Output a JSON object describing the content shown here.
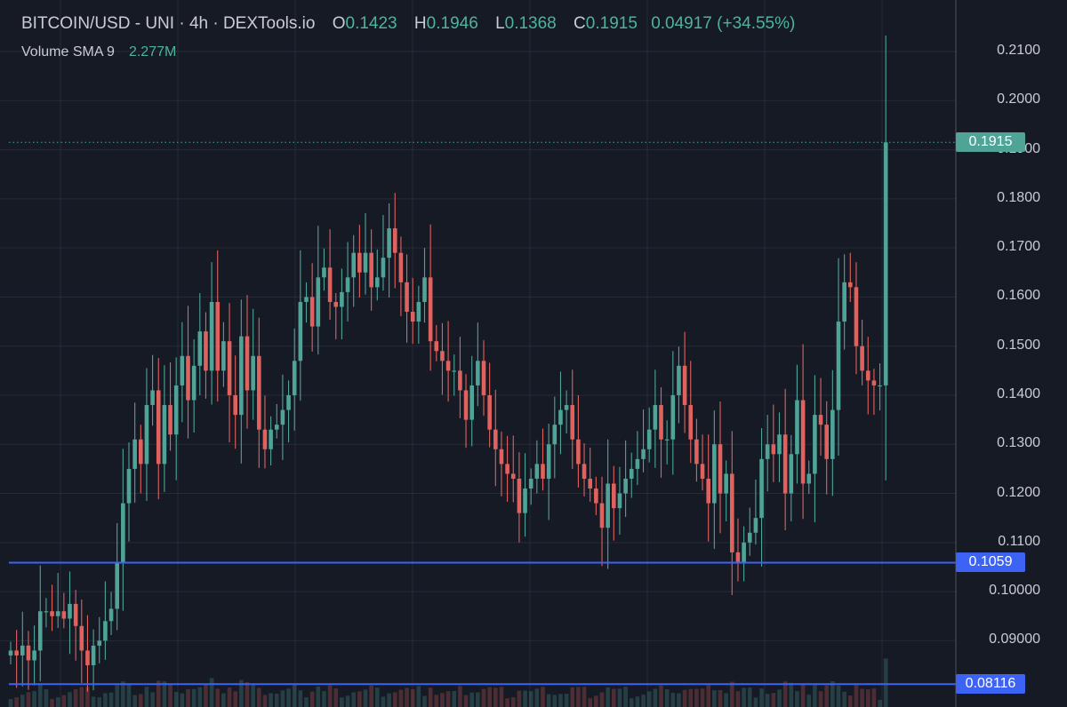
{
  "legend": {
    "title": "BITCOIN/USD - UNI · 4h · DEXTools.io",
    "o_label": "O",
    "o_value": "0.1423",
    "h_label": "H",
    "h_value": "0.1946",
    "l_label": "L",
    "l_value": "0.1368",
    "c_label": "C",
    "c_value": "0.1915",
    "change": "0.04917 (+34.55%)",
    "volume_label": "Volume SMA 9",
    "volume_value": "2.277M"
  },
  "colors": {
    "background": "#161a25",
    "up": "#4fa397",
    "down": "#e0625e",
    "grid": "#262b38",
    "support_line": "#3d63f5",
    "price_badge": "#4fa397",
    "support_badge": "#3d63f5"
  },
  "badges": {
    "current_price": "0.1915",
    "support_1": "0.1059",
    "support_2": "0.08116"
  },
  "chart_data": {
    "type": "candlestick",
    "y_ticks": [
      "0.2100",
      "0.2000",
      "0.1900",
      "0.1800",
      "0.1700",
      "0.1600",
      "0.1500",
      "0.1400",
      "0.1300",
      "0.1200",
      "0.1100",
      "0.10000",
      "0.09000"
    ],
    "ylim": [
      0.0765,
      0.2205
    ],
    "grid": true,
    "horizontal_lines": [
      0.1059,
      0.08116
    ],
    "current_price": 0.1915,
    "closes": [
      0.088,
      0.087,
      0.089,
      0.086,
      0.088,
      0.096,
      0.096,
      0.095,
      0.096,
      0.0945,
      0.0975,
      0.093,
      0.088,
      0.085,
      0.089,
      0.09,
      0.094,
      0.0965,
      0.106,
      0.118,
      0.125,
      0.131,
      0.126,
      0.138,
      0.141,
      0.126,
      0.138,
      0.132,
      0.142,
      0.148,
      0.139,
      0.146,
      0.153,
      0.145,
      0.159,
      0.145,
      0.151,
      0.14,
      0.136,
      0.152,
      0.141,
      0.148,
      0.133,
      0.129,
      0.133,
      0.134,
      0.137,
      0.14,
      0.147,
      0.159,
      0.16,
      0.154,
      0.164,
      0.166,
      0.159,
      0.158,
      0.161,
      0.164,
      0.169,
      0.165,
      0.169,
      0.162,
      0.164,
      0.168,
      0.174,
      0.169,
      0.163,
      0.157,
      0.155,
      0.159,
      0.164,
      0.151,
      0.149,
      0.147,
      0.145,
      0.145,
      0.141,
      0.135,
      0.142,
      0.147,
      0.14,
      0.133,
      0.129,
      0.126,
      0.124,
      0.123,
      0.116,
      0.121,
      0.123,
      0.126,
      0.123,
      0.13,
      0.134,
      0.137,
      0.138,
      0.131,
      0.126,
      0.123,
      0.121,
      0.118,
      0.113,
      0.122,
      0.117,
      0.12,
      0.123,
      0.125,
      0.127,
      0.129,
      0.133,
      0.138,
      0.131,
      0.131,
      0.14,
      0.146,
      0.138,
      0.131,
      0.126,
      0.123,
      0.118,
      0.13,
      0.12,
      0.124,
      0.108,
      0.106,
      0.11,
      0.112,
      0.115,
      0.127,
      0.13,
      0.128,
      0.132,
      0.12,
      0.128,
      0.139,
      0.122,
      0.124,
      0.136,
      0.134,
      0.127,
      0.137,
      0.155,
      0.163,
      0.162,
      0.15,
      0.145,
      0.143,
      0.142,
      0.142,
      0.1915
    ]
  }
}
